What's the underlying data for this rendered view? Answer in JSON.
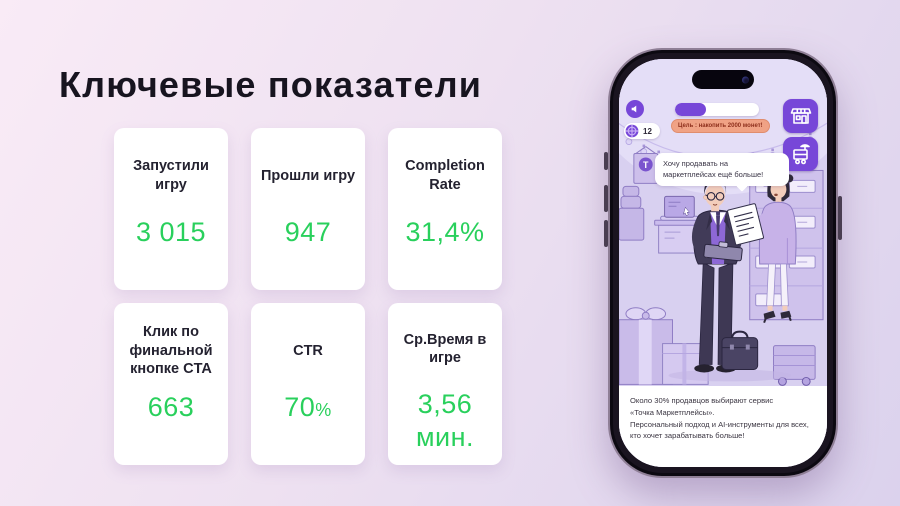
{
  "slide": {
    "title": "Ключевые показатели"
  },
  "metrics": [
    {
      "label": "Запустили игру",
      "value": "3 015",
      "suffix": ""
    },
    {
      "label": "Прошли игру",
      "value": "947",
      "suffix": ""
    },
    {
      "label": "Completion Rate",
      "value": "31,4%",
      "suffix": ""
    },
    {
      "label": "Клик по финальной кнопке CTA",
      "value": "663",
      "suffix": ""
    },
    {
      "label": "CTR",
      "value": "70",
      "suffix": "%"
    },
    {
      "label": "Ср.Время в игре",
      "value": "3,56 мин.",
      "suffix": ""
    }
  ],
  "phone": {
    "hud": {
      "coin_count": "12",
      "goal_text": "Цель : накопить 2000 монет!",
      "progress_percent": 37
    },
    "scene": {
      "logo_letter": "T",
      "speech_bubble": "Хочу продавать на маркетплейсах ещё больше!"
    },
    "footer": {
      "line1": "Около 30% продавцов выбирают сервис",
      "line2": "«Точка Маркетплейсы».",
      "line3": "Персональный подход и AI-инструменты для всех,",
      "line4": "кто хочет зарабатывать больше!"
    }
  },
  "colors": {
    "accent-green": "#29d05c",
    "hud-purple": "#7747d8",
    "goal-bg": "#f0a285",
    "goal-text": "#8e2f1c"
  }
}
